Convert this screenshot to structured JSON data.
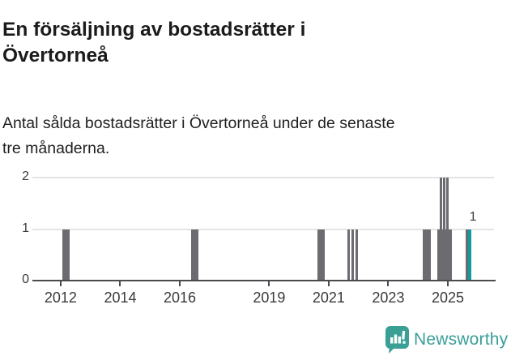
{
  "header": {
    "title": "En försäljning av bostadsrätter i\nÖvertorneå",
    "subtitle": "Antal sålda bostadsrätter i Övertorneå under de senaste\ntre månaderna."
  },
  "chart_data": {
    "type": "bar",
    "title": "En försäljning av bostadsrätter i Övertorneå",
    "subtitle": "Antal sålda bostadsrätter i Övertorneå under de senaste tre månaderna.",
    "xlabel": "",
    "ylabel": "",
    "grid": "horizontal",
    "y_ticks": [
      0,
      1,
      2
    ],
    "ylim": [
      0,
      2
    ],
    "x_tick_labels": [
      "2012",
      "2014",
      "2016",
      "2019",
      "2021",
      "2023",
      "2025"
    ],
    "x_tick_years": [
      2012,
      2014,
      2016,
      2019,
      2021,
      2023,
      2025
    ],
    "x_range": [
      2011.05,
      2026.55
    ],
    "bars": [
      {
        "start": 2012.05,
        "end": 2012.3,
        "value": 1
      },
      {
        "start": 2016.39,
        "end": 2016.62,
        "value": 1
      },
      {
        "start": 2020.61,
        "end": 2020.86,
        "value": 1
      },
      {
        "start": 2021.62,
        "end": 2021.7,
        "value": 1
      },
      {
        "start": 2021.76,
        "end": 2021.84,
        "value": 1
      },
      {
        "start": 2021.89,
        "end": 2021.97,
        "value": 1
      },
      {
        "start": 2024.17,
        "end": 2024.42,
        "value": 1
      },
      {
        "start": 2024.64,
        "end": 2025.13,
        "value": 1
      },
      {
        "start": 2024.72,
        "end": 2024.8,
        "value": 2
      },
      {
        "start": 2024.84,
        "end": 2024.92,
        "value": 2
      },
      {
        "start": 2024.95,
        "end": 2025.03,
        "value": 2
      },
      {
        "start": 2025.59,
        "end": 2025.67,
        "value": 1
      },
      {
        "start": 2025.67,
        "end": 2025.8,
        "value": 1,
        "highlight": true,
        "label": "1"
      }
    ],
    "colors": {
      "bar": "#6b6b70",
      "highlight": "#12999a",
      "grid": "#e4e4e4",
      "axis": "#4a4a4f"
    },
    "legend": null
  },
  "footer": {
    "brand": "Newsworthy",
    "logo_color": "#3aa096"
  }
}
